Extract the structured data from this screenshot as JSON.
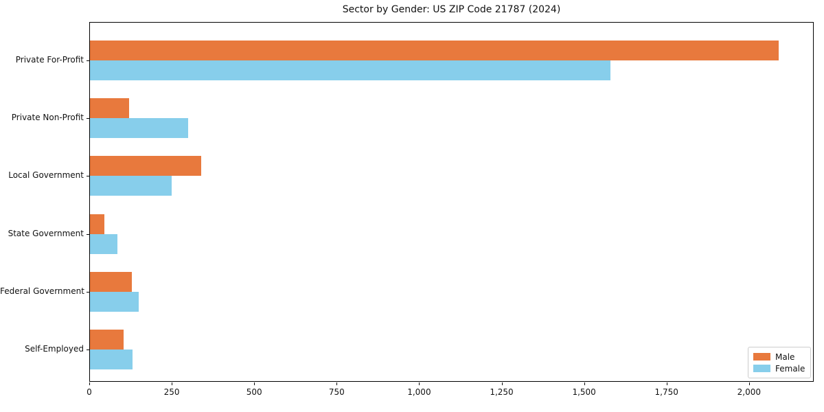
{
  "figure": {
    "background": "#ffffff",
    "spine_color": "#000000"
  },
  "chart_data": {
    "type": "bar",
    "orientation": "horizontal",
    "title": "Sector by Gender: US ZIP Code 21787 (2024)",
    "xlabel": "",
    "ylabel": "",
    "grid": false,
    "categories": [
      "Private For-Profit",
      "Private Non-Profit",
      "Local Government",
      "State Government",
      "Federal Government",
      "Self-Employed"
    ],
    "series": [
      {
        "name": "Male",
        "color": "#e8793d",
        "values": [
          2090,
          120,
          340,
          45,
          130,
          105
        ]
      },
      {
        "name": "Female",
        "color": "#87ceeb",
        "values": [
          1580,
          300,
          250,
          85,
          150,
          132
        ]
      }
    ],
    "xlim": [
      0,
      2196
    ],
    "xticks": {
      "values": [
        0,
        250,
        500,
        750,
        1000,
        1250,
        1500,
        1750,
        2000
      ],
      "labels": [
        "0",
        "250",
        "500",
        "750",
        "1,000",
        "1,250",
        "1,500",
        "1,750",
        "2,000"
      ]
    },
    "legend": {
      "position": "lower right",
      "entries": [
        "Male",
        "Female"
      ]
    }
  }
}
